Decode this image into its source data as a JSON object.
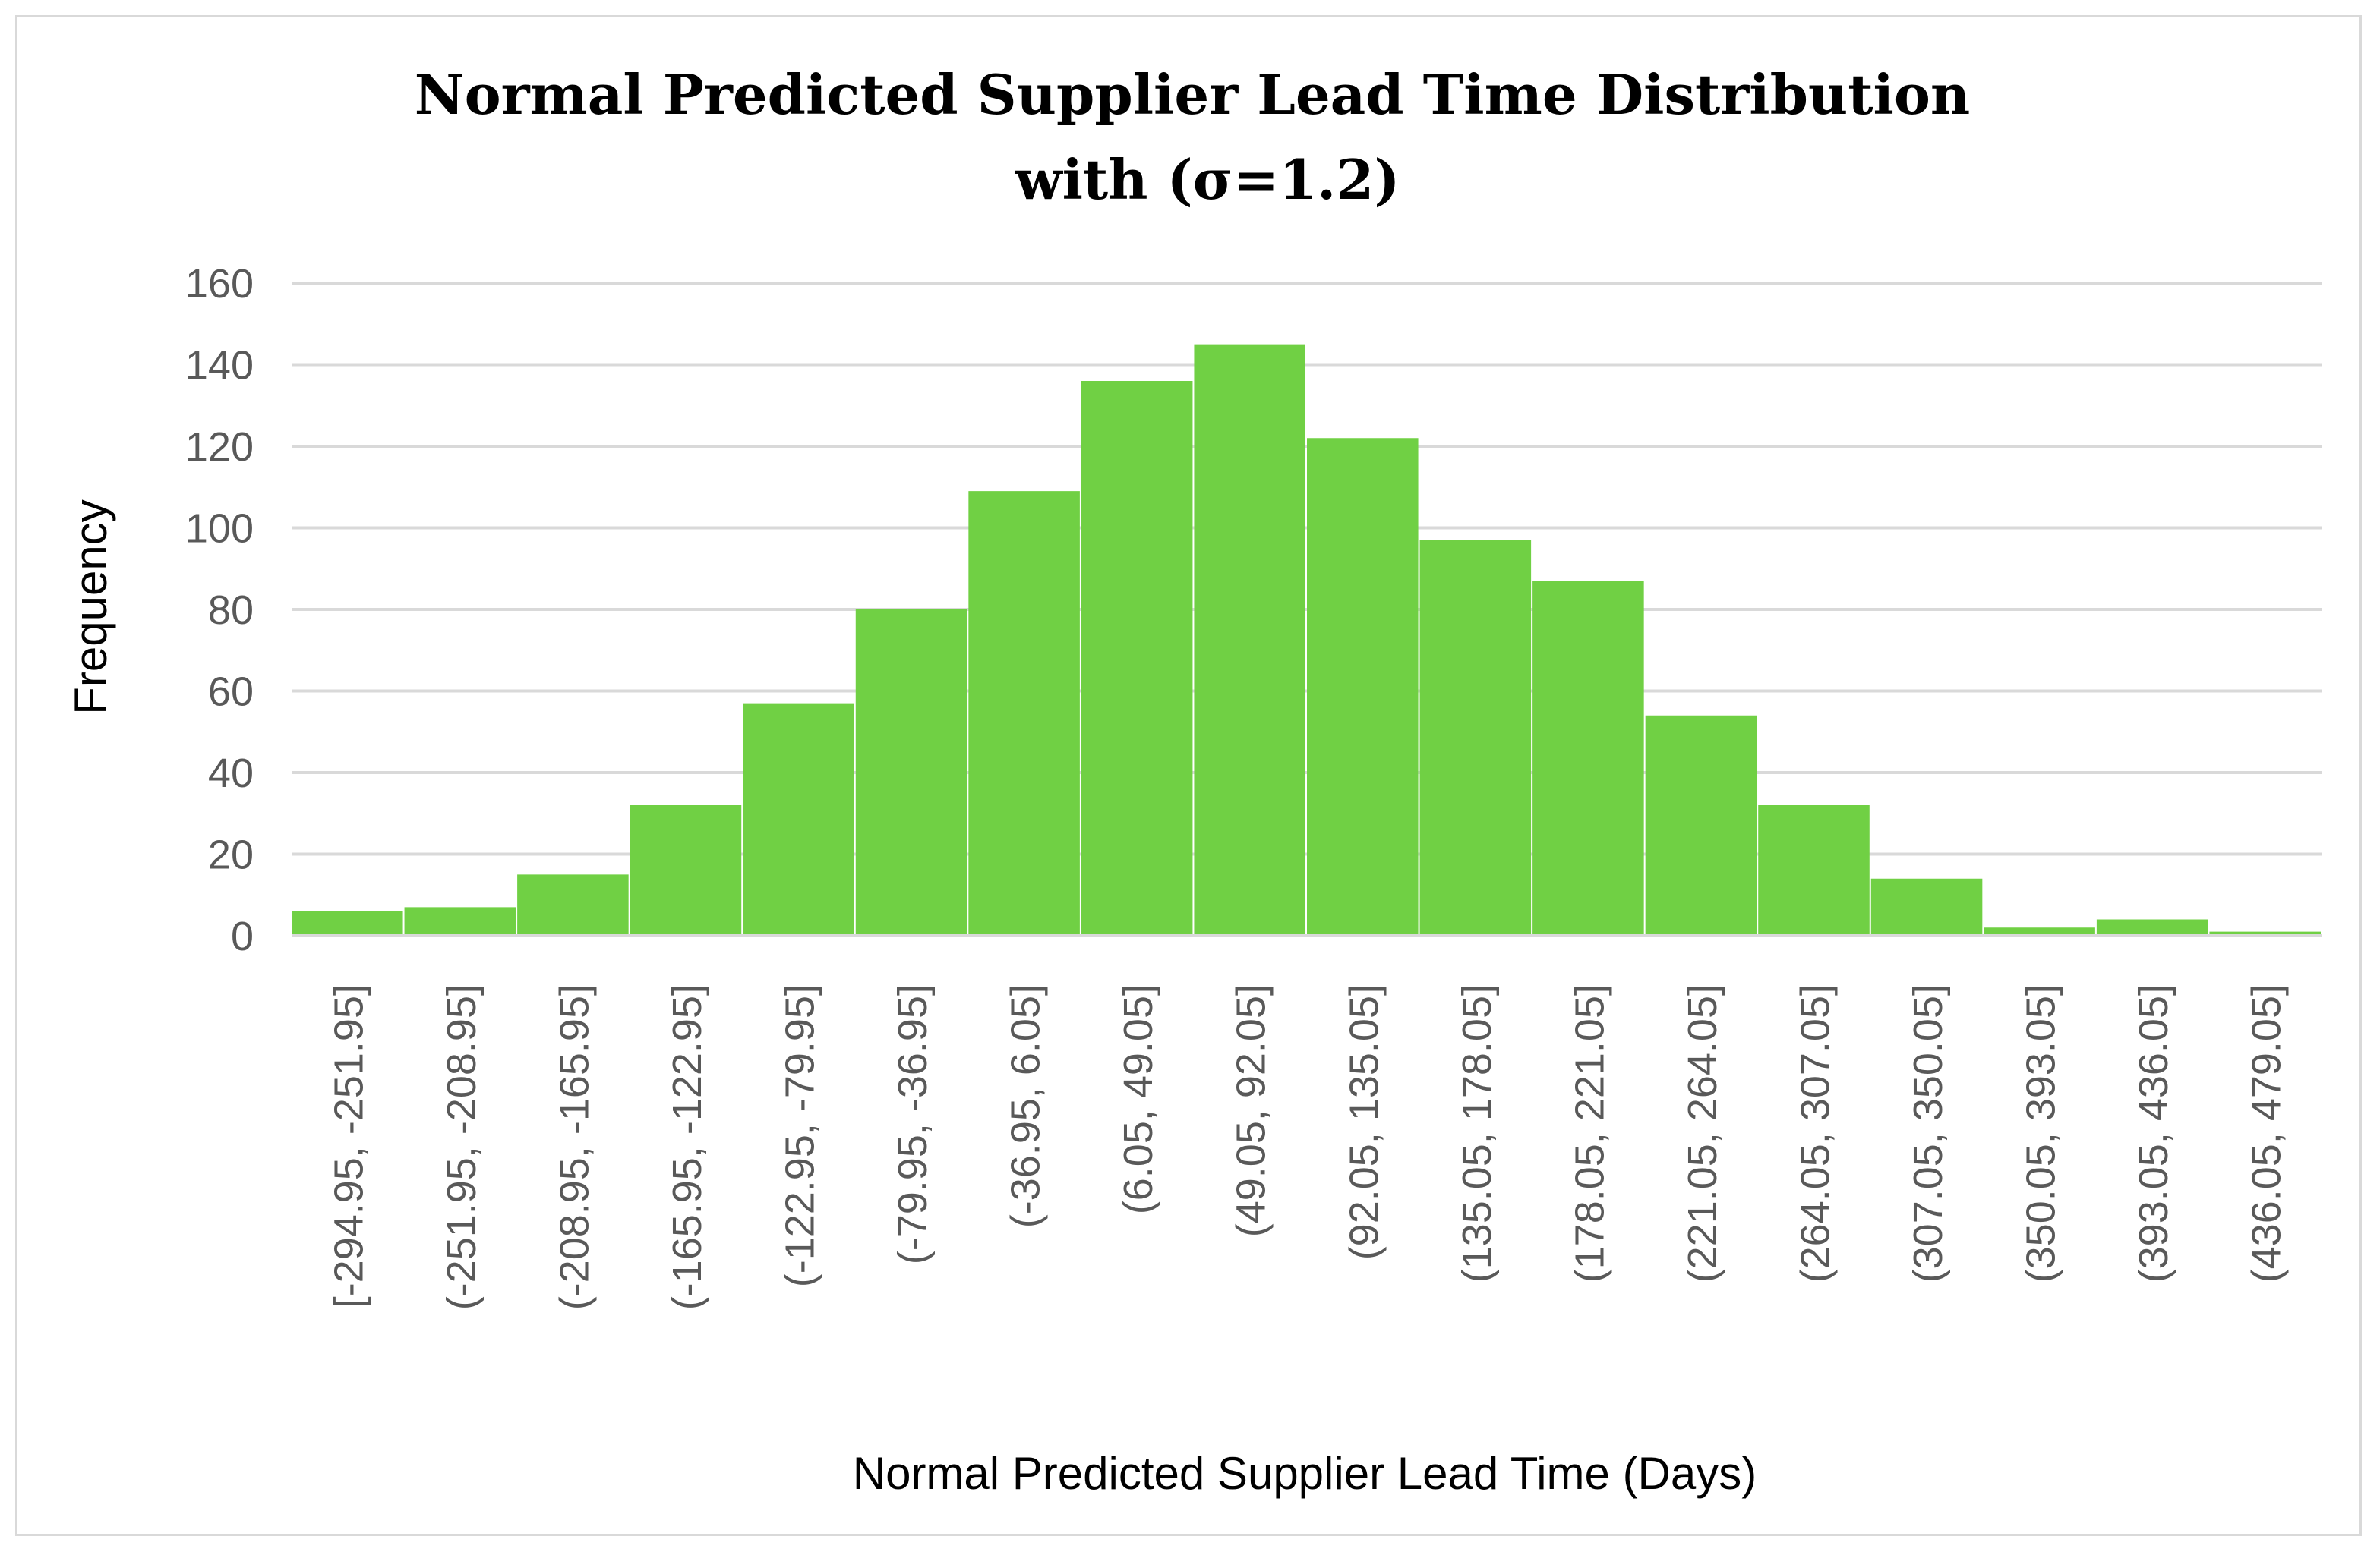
{
  "chart_data": {
    "type": "bar",
    "title": "Normal Predicted Supplier Lead Time Distribution",
    "subtitle": "with (σ=1.2)",
    "xlabel": "Normal Predicted Supplier Lead Time (Days)",
    "ylabel": "Frequency",
    "ylim": [
      0,
      160
    ],
    "yticks": [
      "0",
      "20",
      "40",
      "60",
      "80",
      "100",
      "120",
      "140",
      "160"
    ],
    "grid": true,
    "legend": "none",
    "bar_color": "#70d044",
    "categories": [
      "[-294.95, -251.95]",
      "(-251.95, -208.95]",
      "(-208.95, -165.95]",
      "(-165.95, -122.95]",
      "(-122.95, -79.95]",
      "(-79.95, -36.95]",
      "(-36.95, 6.05]",
      "(6.05, 49.05]",
      "(49.05, 92.05]",
      "(92.05, 135.05]",
      "(135.05, 178.05]",
      "(178.05, 221.05]",
      "(221.05, 264.05]",
      "(264.05, 307.05]",
      "(307.05, 350.05]",
      "(350.05, 393.05]",
      "(393.05, 436.05]",
      "(436.05, 479.05]"
    ],
    "values": [
      6,
      7,
      15,
      32,
      57,
      80,
      109,
      136,
      145,
      122,
      97,
      87,
      54,
      32,
      14,
      2,
      4,
      1
    ]
  }
}
